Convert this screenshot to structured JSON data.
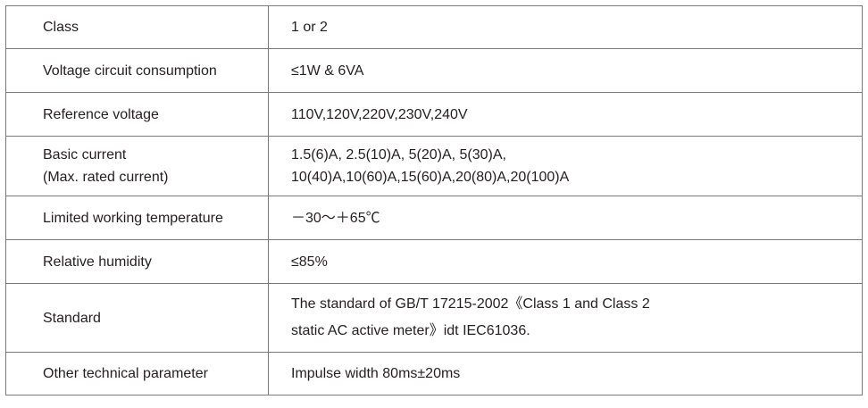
{
  "rows": [
    {
      "label": [
        "Class"
      ],
      "value": [
        "1 or  2"
      ]
    },
    {
      "label": [
        "Voltage circuit consumption"
      ],
      "value": [
        "≤1W &  6VA"
      ]
    },
    {
      "label": [
        "Reference voltage"
      ],
      "value": [
        "110V,120V,220V,230V,240V"
      ]
    },
    {
      "label": [
        "Basic current",
        "(Max. rated current)"
      ],
      "value": [
        "1.5(6)A, 2.5(10)A, 5(20)A, 5(30)A,",
        "10(40)A,10(60)A,15(60)A,20(80)A,20(100)A"
      ]
    },
    {
      "label": [
        "Limited working temperature"
      ],
      "value": [
        "－30～＋65℃"
      ]
    },
    {
      "label": [
        "Relative humidity"
      ],
      "value": [
        "≤85%"
      ]
    },
    {
      "label": [
        "Standard"
      ],
      "value": [
        "The standard of GB/T 17215-2002《Class 1 and Class 2",
        "static  AC active meter》idt IEC61036."
      ]
    },
    {
      "label": [
        "Other technical parameter"
      ],
      "value": [
        "Impulse width 80ms±20ms"
      ]
    }
  ]
}
